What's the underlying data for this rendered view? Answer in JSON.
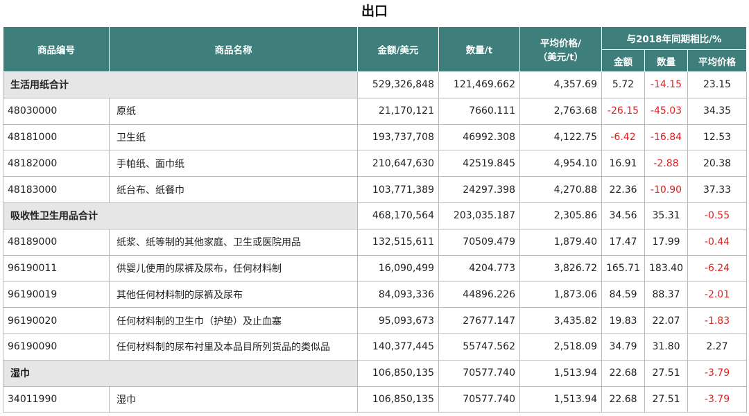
{
  "title": "出口",
  "headers": {
    "code": "商品编号",
    "name": "商品名称",
    "amount": "金额/美元",
    "qty": "数量/t",
    "avg_price_line1": "平均价格/",
    "avg_price_line2": "（美元/t）",
    "yoy_group": "与2018年同期相比/%",
    "yoy_amount": "金额",
    "yoy_qty": "数量",
    "yoy_price": "平均价格"
  },
  "rows": [
    {
      "type": "subtotal",
      "label": "生活用纸合计",
      "amount": "529,326,848",
      "qty": "121,469.662",
      "price": "4,357.69",
      "yoy_amount": "5.72",
      "yoy_qty": "-14.15",
      "yoy_price": "23.15"
    },
    {
      "type": "item",
      "code": "48030000",
      "name": "原纸",
      "amount": "21,170,121",
      "qty": "7660.111",
      "price": "2,763.68",
      "yoy_amount": "-26.15",
      "yoy_qty": "-45.03",
      "yoy_price": "34.35"
    },
    {
      "type": "item",
      "code": "48181000",
      "name": "卫生纸",
      "amount": "193,737,708",
      "qty": "46992.308",
      "price": "4,122.75",
      "yoy_amount": "-6.42",
      "yoy_qty": "-16.84",
      "yoy_price": "12.53"
    },
    {
      "type": "item",
      "code": "48182000",
      "name": "手帕纸、面巾纸",
      "amount": "210,647,630",
      "qty": "42519.845",
      "price": "4,954.10",
      "yoy_amount": "16.91",
      "yoy_qty": "-2.88",
      "yoy_price": "20.38"
    },
    {
      "type": "item",
      "code": "48183000",
      "name": "纸台布、纸餐巾",
      "amount": "103,771,389",
      "qty": "24297.398",
      "price": "4,270.88",
      "yoy_amount": "22.36",
      "yoy_qty": "-10.90",
      "yoy_price": "37.33"
    },
    {
      "type": "subtotal",
      "label": "吸收性卫生用品合计",
      "amount": "468,170,564",
      "qty": "203,035.187",
      "price": "2,305.86",
      "yoy_amount": "34.56",
      "yoy_qty": "35.31",
      "yoy_price": "-0.55"
    },
    {
      "type": "item",
      "code": "48189000",
      "name": "纸浆、纸等制的其他家庭、卫生或医院用品",
      "amount": "132,515,611",
      "qty": "70509.479",
      "price": "1,879.40",
      "yoy_amount": "17.47",
      "yoy_qty": "17.99",
      "yoy_price": "-0.44"
    },
    {
      "type": "item",
      "code": "96190011",
      "name": "供婴儿使用的尿裤及尿布，任何材料制",
      "amount": "16,090,499",
      "qty": "4204.773",
      "price": "3,826.72",
      "yoy_amount": "165.71",
      "yoy_qty": "183.40",
      "yoy_price": "-6.24"
    },
    {
      "type": "item",
      "code": "96190019",
      "name": "其他任何材料制的尿裤及尿布",
      "amount": "84,093,336",
      "qty": "44896.226",
      "price": "1,873.06",
      "yoy_amount": "84.59",
      "yoy_qty": "88.37",
      "yoy_price": "-2.01"
    },
    {
      "type": "item",
      "code": "96190020",
      "name": "任何材料制的卫生巾（护垫）及止血塞",
      "amount": "95,093,673",
      "qty": "27677.147",
      "price": "3,435.82",
      "yoy_amount": "19.83",
      "yoy_qty": "22.07",
      "yoy_price": "-1.83"
    },
    {
      "type": "item",
      "code": "96190090",
      "name": "任何材料制的尿布衬里及本品目所列货品的类似品",
      "amount": "140,377,445",
      "qty": "55747.562",
      "price": "2,518.09",
      "yoy_amount": "34.79",
      "yoy_qty": "31.80",
      "yoy_price": "2.27"
    },
    {
      "type": "subtotal",
      "label": "湿巾",
      "amount": "106,850,135",
      "qty": "70577.740",
      "price": "1,513.94",
      "yoy_amount": "22.68",
      "yoy_qty": "27.51",
      "yoy_price": "-3.79"
    },
    {
      "type": "item",
      "code": "34011990",
      "name": "湿巾",
      "amount": "106,850,135",
      "qty": "70577.740",
      "price": "1,513.94",
      "yoy_amount": "22.68",
      "yoy_qty": "27.51",
      "yoy_price": "-3.79"
    }
  ],
  "colors": {
    "header_bg": "#3f7f7b",
    "subtotal_bg": "#e6e6e6",
    "negative": "#e0211f"
  }
}
